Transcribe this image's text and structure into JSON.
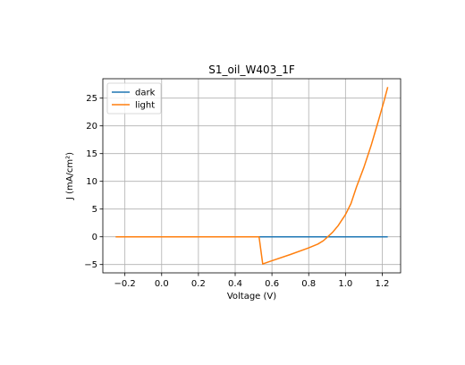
{
  "chart_data": {
    "type": "line",
    "title": "S1_oil_W403_1F",
    "xlabel": "Voltage (V)",
    "ylabel": "J (mA/cm²)",
    "xlim": [
      -0.32,
      1.3
    ],
    "ylim": [
      -6.5,
      28.5
    ],
    "xticks": [
      -0.2,
      0.0,
      0.2,
      0.4,
      0.6,
      0.8,
      1.0,
      1.2
    ],
    "xtick_labels": [
      "−0.2",
      "0.0",
      "0.2",
      "0.4",
      "0.6",
      "0.8",
      "1.0",
      "1.2"
    ],
    "yticks": [
      -5,
      0,
      5,
      10,
      15,
      20,
      25
    ],
    "ytick_labels": [
      "−5",
      "0",
      "5",
      "10",
      "15",
      "20",
      "25"
    ],
    "grid": true,
    "legend_position": "upper-left",
    "series": [
      {
        "name": "dark",
        "color": "#1f77b4",
        "x": [
          -0.25,
          0.0,
          0.25,
          0.5,
          0.75,
          1.0,
          1.23
        ],
        "y": [
          0,
          0,
          0,
          0,
          0,
          0,
          0
        ]
      },
      {
        "name": "light",
        "color": "#ff7f0e",
        "x": [
          -0.25,
          0.0,
          0.2,
          0.4,
          0.53,
          0.55,
          0.6,
          0.7,
          0.8,
          0.85,
          0.88,
          0.9,
          0.93,
          0.96,
          1.0,
          1.03,
          1.06,
          1.1,
          1.14,
          1.18,
          1.21,
          1.23
        ],
        "y": [
          0,
          0,
          0,
          0,
          0,
          -4.9,
          -4.3,
          -3.2,
          -2.0,
          -1.3,
          -0.7,
          -0.1,
          0.8,
          2.0,
          4.0,
          6.0,
          9.0,
          12.5,
          16.5,
          21.0,
          24.5,
          27.0
        ]
      }
    ]
  }
}
